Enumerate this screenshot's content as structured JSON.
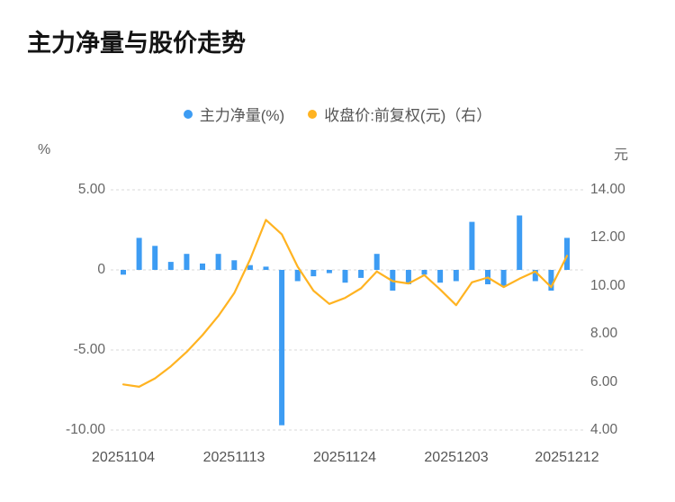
{
  "title": "主力净量与股价走势",
  "legend": [
    {
      "label": "主力净量(%)",
      "color": "#3d9cf3"
    },
    {
      "label": "收盘价:前复权(元)（右）",
      "color": "#ffb321"
    }
  ],
  "axes": {
    "left_unit": "%",
    "right_unit": "元",
    "left_ticks": [
      "5.00",
      "0",
      "-5.00",
      "-10.00"
    ],
    "right_ticks": [
      "14.00",
      "12.00",
      "10.00",
      "8.00",
      "6.00",
      "4.00"
    ],
    "x_ticks": [
      "20251104",
      "20251113",
      "20251124",
      "20251203",
      "20251212"
    ]
  },
  "colors": {
    "bar": "#3d9cf3",
    "line": "#ffb321",
    "grid": "#d9d9d9",
    "text": "#666666",
    "title": "#141414"
  },
  "chart_data": {
    "type": "bar",
    "title": "主力净量与股价走势",
    "x": [
      "20251104",
      "20251105",
      "20251106",
      "20251107",
      "20251110",
      "20251111",
      "20251112",
      "20251113",
      "20251114",
      "20251117",
      "20251118",
      "20251119",
      "20251120",
      "20251121",
      "20251124",
      "20251125",
      "20251126",
      "20251127",
      "20251128",
      "20251201",
      "20251202",
      "20251203",
      "20251204",
      "20251205",
      "20251208",
      "20251209",
      "20251210",
      "20251211",
      "20251212"
    ],
    "x_tick_labels": [
      "20251104",
      "20251113",
      "20251124",
      "20251203",
      "20251212"
    ],
    "series": [
      {
        "name": "主力净量(%)",
        "type": "bar",
        "axis": "left",
        "color": "#3d9cf3",
        "values": [
          -0.3,
          2.0,
          1.5,
          0.5,
          1.0,
          0.4,
          1.0,
          0.6,
          0.3,
          0.2,
          -9.7,
          -0.7,
          -0.4,
          -0.2,
          -0.8,
          -0.5,
          1.0,
          -1.3,
          -0.9,
          -0.3,
          -0.8,
          -0.7,
          3.0,
          -0.9,
          -1.0,
          3.4,
          -0.7,
          -1.3,
          2.0
        ]
      },
      {
        "name": "收盘价:前复权(元)（右）",
        "type": "line",
        "axis": "right",
        "color": "#ffb321",
        "values": [
          5.9,
          5.8,
          6.15,
          6.65,
          7.25,
          7.95,
          8.75,
          9.7,
          11.1,
          12.75,
          12.15,
          10.8,
          9.8,
          9.25,
          9.5,
          9.9,
          10.6,
          10.2,
          10.1,
          10.45,
          9.85,
          9.2,
          10.15,
          10.35,
          9.95,
          10.3,
          10.6,
          9.95,
          11.25
        ]
      }
    ],
    "left_axis": {
      "unit": "%",
      "min": -10,
      "max": 5,
      "ticks": [
        5,
        0,
        -5,
        -10
      ]
    },
    "right_axis": {
      "unit": "元",
      "min": 4,
      "max": 14,
      "ticks": [
        14,
        12,
        10,
        8,
        6,
        4
      ]
    },
    "grid": "dashed-horizontal",
    "legend_position": "top-center"
  }
}
